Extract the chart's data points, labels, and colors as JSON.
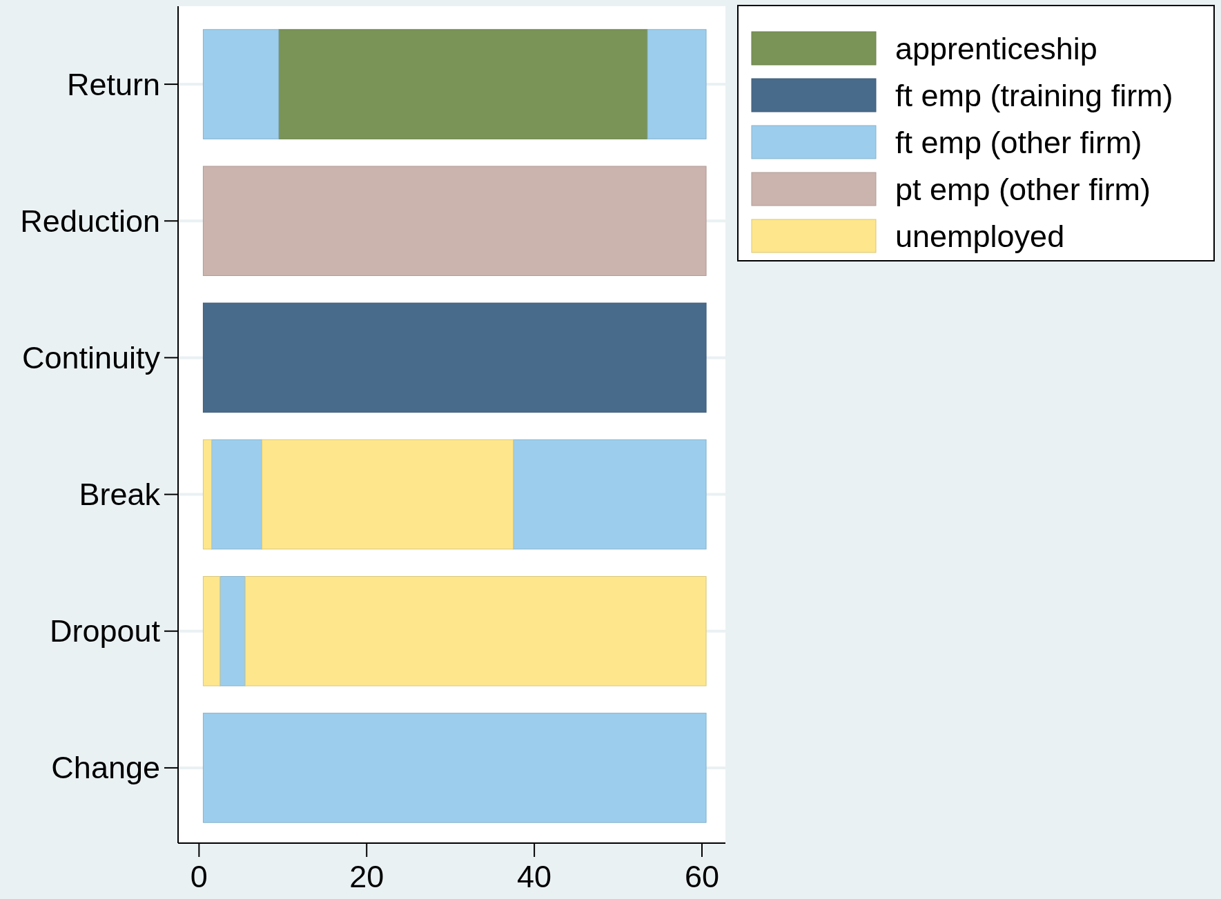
{
  "chart_data": {
    "type": "bar",
    "orientation": "horizontal",
    "categories": [
      "Return",
      "Reduction",
      "Continuity",
      "Break",
      "Dropout",
      "Change"
    ],
    "series": [
      {
        "name": "apprenticeship",
        "color": "#7a9457",
        "values": [
          44,
          null,
          null,
          null,
          null,
          null
        ],
        "base": [
          9.5,
          null,
          null,
          null,
          null,
          null
        ]
      },
      {
        "name": "ft emp (training firm)",
        "color": "#486a8b",
        "values": [
          null,
          null,
          60,
          null,
          null,
          null
        ],
        "base": [
          null,
          null,
          0.5,
          null,
          null,
          null
        ]
      },
      {
        "name": "ft emp (other firm)",
        "color": "#9ccdec",
        "values": [
          9,
          null,
          null,
          6,
          3,
          60
        ],
        "base": [
          0.5,
          null,
          null,
          1.5,
          2.5,
          0.5
        ]
      },
      {
        "name": "pt emp (other firm)",
        "color": "#cbb3ae",
        "values": [
          null,
          60,
          null,
          null,
          null,
          null
        ],
        "base": [
          null,
          0.5,
          null,
          null,
          null,
          null
        ]
      },
      {
        "name": "unemployed",
        "color": "#fde68c",
        "values": [
          null,
          null,
          null,
          1,
          2,
          null
        ],
        "base": [
          null,
          null,
          null,
          0.5,
          0.5,
          null
        ]
      },
      {
        "color": "#9ccdec",
        "values": [
          7,
          null,
          null,
          23,
          null,
          null
        ],
        "base": [
          53.5,
          null,
          null,
          37.5,
          null,
          null
        ]
      },
      {
        "color": "#fde68c",
        "values": [
          null,
          null,
          null,
          30,
          55,
          null
        ],
        "base": [
          null,
          null,
          null,
          7.5,
          5.5,
          null
        ]
      }
    ],
    "xlim": [
      -2.5,
      62.8
    ],
    "xticks": [
      0,
      20,
      40,
      60
    ],
    "grid": "y",
    "legend": "top right"
  }
}
